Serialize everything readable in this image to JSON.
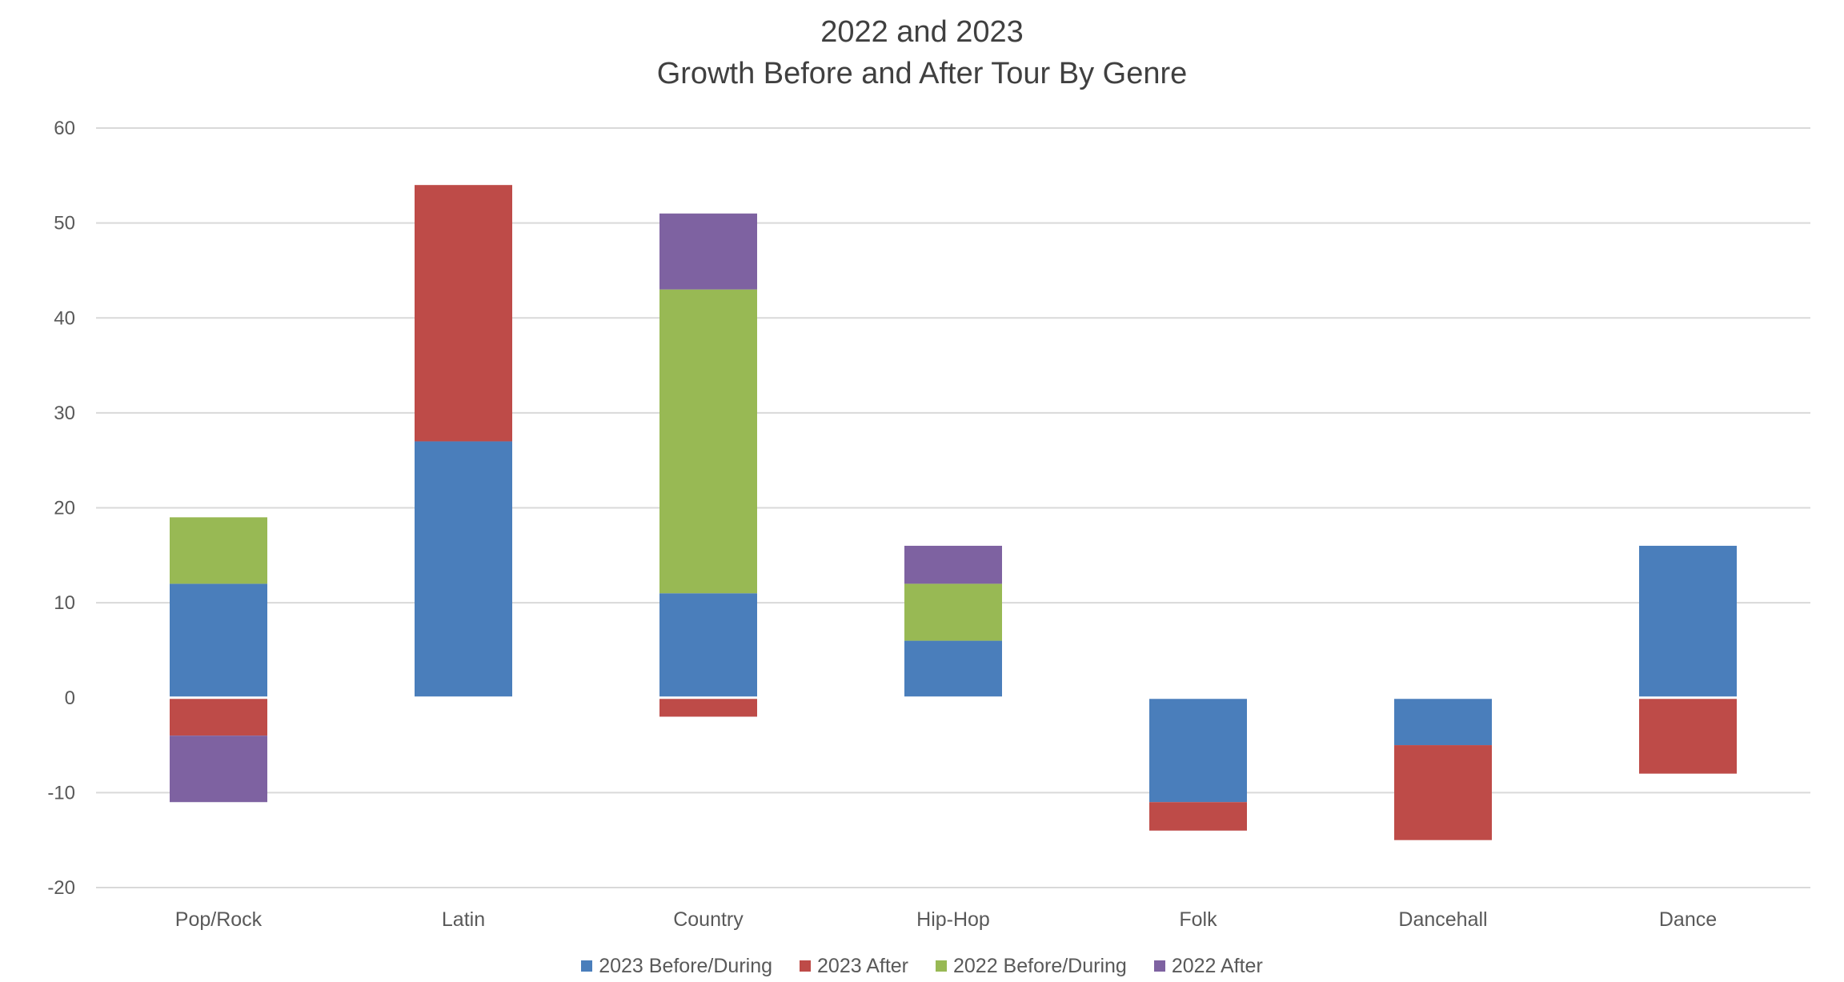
{
  "chart_data": {
    "type": "bar",
    "stacked": true,
    "title": [
      "2022 and 2023",
      "Growth Before and After Tour By Genre"
    ],
    "categories": [
      "Pop/Rock",
      "Latin",
      "Country",
      "Hip-Hop",
      "Folk",
      "Dancehall",
      "Dance"
    ],
    "series": [
      {
        "name": "2023 Before/During",
        "color": "#4A7EBB",
        "values": [
          12,
          27,
          11,
          6,
          -11,
          -5,
          16
        ]
      },
      {
        "name": "2023 After",
        "color": "#BE4B48",
        "values": [
          -4,
          27,
          -2,
          0,
          -3,
          -10,
          -8
        ]
      },
      {
        "name": "2022 Before/During",
        "color": "#98B954",
        "values": [
          7,
          0,
          32,
          6,
          0,
          0,
          0
        ]
      },
      {
        "name": "2022 After",
        "color": "#7E62A1",
        "values": [
          -7,
          0,
          8,
          4,
          0,
          0,
          0
        ]
      }
    ],
    "ylim": [
      -20,
      60
    ],
    "yticks": [
      "-20",
      "-10",
      "0",
      "10",
      "20",
      "30",
      "40",
      "50",
      "60"
    ],
    "grid": true,
    "legend_position": "bottom",
    "xlabel": "",
    "ylabel": ""
  }
}
